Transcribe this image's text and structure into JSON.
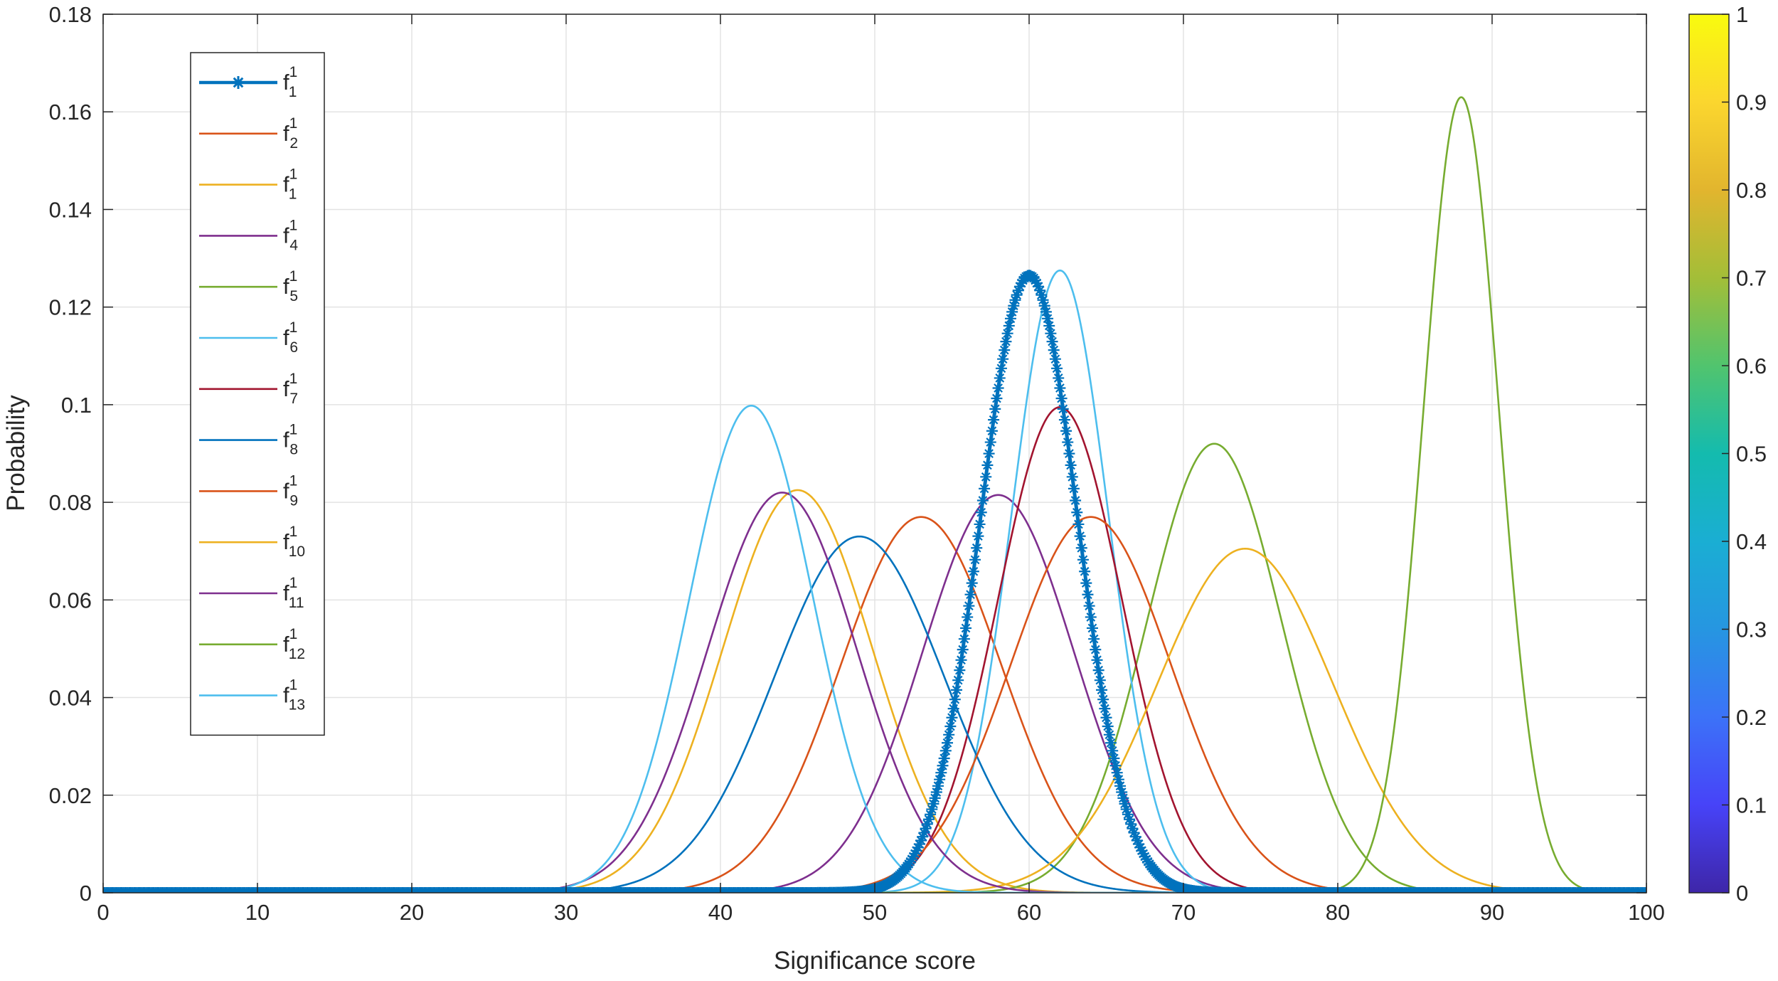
{
  "chart_data": {
    "type": "line",
    "title": "",
    "xlabel": "Significance  score",
    "ylabel": "Probability",
    "xlim": [
      0,
      100
    ],
    "ylim": [
      0,
      0.18
    ],
    "xticks": [
      "0",
      "10",
      "20",
      "30",
      "40",
      "50",
      "60",
      "70",
      "80",
      "90",
      "100"
    ],
    "yticks": [
      "0",
      "0.02",
      "0.04",
      "0.06",
      "0.08",
      "0.1",
      "0.12",
      "0.14",
      "0.16",
      "0.18"
    ],
    "grid": true,
    "legend_position": "top-left",
    "series": [
      {
        "base": "f",
        "sup": "1",
        "sub": "1",
        "color": "#0072BD",
        "mu": 60,
        "sigma": 3.15,
        "peak": 0.1265,
        "marker": "asterisk"
      },
      {
        "base": "f",
        "sup": "1",
        "sub": "2",
        "color": "#D95319",
        "mu": 53,
        "sigma": 5.2,
        "peak": 0.077
      },
      {
        "base": "f",
        "sup": "1",
        "sub": "1",
        "color": "#EDB120",
        "mu": 45,
        "sigma": 4.85,
        "peak": 0.0825
      },
      {
        "base": "f",
        "sup": "1",
        "sub": "4",
        "color": "#7E2F8E",
        "mu": 58,
        "sigma": 4.9,
        "peak": 0.0815
      },
      {
        "base": "f",
        "sup": "1",
        "sub": "5",
        "color": "#77AC30",
        "mu": 72,
        "sigma": 4.35,
        "peak": 0.092
      },
      {
        "base": "f",
        "sup": "1",
        "sub": "6",
        "color": "#4DBEEE",
        "mu": 62,
        "sigma": 3.15,
        "peak": 0.1275
      },
      {
        "base": "f",
        "sup": "1",
        "sub": "7",
        "color": "#A2142F",
        "mu": 62,
        "sigma": 4.0,
        "peak": 0.0995
      },
      {
        "base": "f",
        "sup": "1",
        "sub": "8",
        "color": "#0072BD",
        "mu": 49,
        "sigma": 5.5,
        "peak": 0.073
      },
      {
        "base": "f",
        "sup": "1",
        "sub": "9",
        "color": "#D95319",
        "mu": 64,
        "sigma": 5.2,
        "peak": 0.077
      },
      {
        "base": "f",
        "sup": "1",
        "sub": "10",
        "color": "#EDB120",
        "mu": 74,
        "sigma": 5.7,
        "peak": 0.0705
      },
      {
        "base": "f",
        "sup": "1",
        "sub": "11",
        "color": "#7E2F8E",
        "mu": 44,
        "sigma": 4.85,
        "peak": 0.082
      },
      {
        "base": "f",
        "sup": "1",
        "sub": "12",
        "color": "#77AC30",
        "mu": 88,
        "sigma": 2.45,
        "peak": 0.163
      },
      {
        "base": "f",
        "sup": "1",
        "sub": "13",
        "color": "#4DBEEE",
        "mu": 42,
        "sigma": 4.0,
        "peak": 0.0998
      }
    ],
    "colorbar": {
      "range": [
        0,
        1
      ],
      "ticks": [
        "0",
        "0.1",
        "0.2",
        "0.3",
        "0.4",
        "0.5",
        "0.6",
        "0.7",
        "0.8",
        "0.9",
        "1"
      ],
      "colormap": [
        "#3E26A8",
        "#4743F8",
        "#3C72F8",
        "#2696E1",
        "#1AAED3",
        "#14BBAE",
        "#51C46E",
        "#A3BE38",
        "#E2B52E",
        "#FBD62E",
        "#F9FB0E"
      ]
    }
  }
}
